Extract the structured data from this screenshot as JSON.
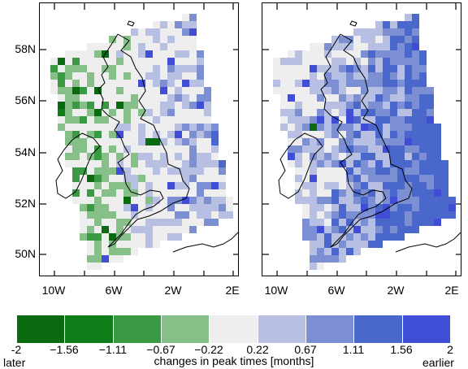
{
  "y_ticks": [
    "58N",
    "56N",
    "54N",
    "52N",
    "50N"
  ],
  "x_ticks": [
    "10W",
    "6W",
    "2W",
    "2E"
  ],
  "colorbar": {
    "title": "changes in peak times [months]",
    "labels": [
      "-2",
      "−1.56",
      "−1.11",
      "−0.67",
      "−0.22",
      "0.22",
      "0.67",
      "1.11",
      "1.56",
      "2"
    ],
    "left_end_label": "later",
    "right_end_label": "earlier",
    "colors": [
      "#0a6a10",
      "#0f7d1a",
      "#3a9a43",
      "#86bf87",
      "#eeeeee",
      "#b7bfe3",
      "#7c8fd3",
      "#4a68cc",
      "#3f4ed4"
    ]
  },
  "panels": [
    {
      "name": "left",
      "scenario_bias": 0.0
    },
    {
      "name": "right",
      "scenario_bias": 1.0
    }
  ]
}
